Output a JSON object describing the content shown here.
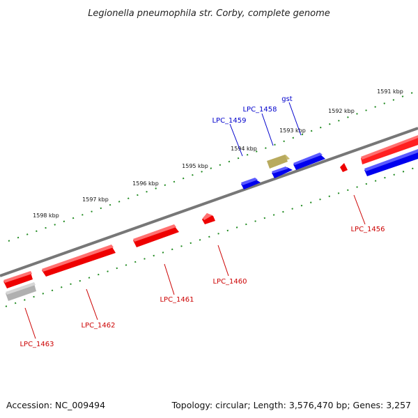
{
  "title": "Legionella pneumophila str. Corby, complete genome",
  "footer": {
    "accession": "Accession: NC_009494",
    "summary": "Topology: circular; Length: 3,576,470 bp; Genes: 3,257"
  },
  "ruler": {
    "tick_labels": [
      "1591 kbp",
      "1592 kbp",
      "1593 kbp",
      "1594 kbp",
      "1595 kbp",
      "1596 kbp",
      "1597 kbp",
      "1598 kbp"
    ]
  },
  "genes": {
    "forward": [
      "LPC_1459",
      "LPC_1458",
      "gst"
    ],
    "reverse": [
      "LPC_1456",
      "LPC_1460",
      "LPC_1461",
      "LPC_1462",
      "LPC_1463"
    ]
  },
  "colors": {
    "forward_label": "#0000cc",
    "reverse_label": "#cc0000",
    "forward_gene": "#0000ee",
    "reverse_gene": "#ee0000",
    "rna_gene": "#b8aa5e",
    "pseudo_gene": "#b8b8b8",
    "tick": "#1f8a1f",
    "backbone": "#777777"
  }
}
